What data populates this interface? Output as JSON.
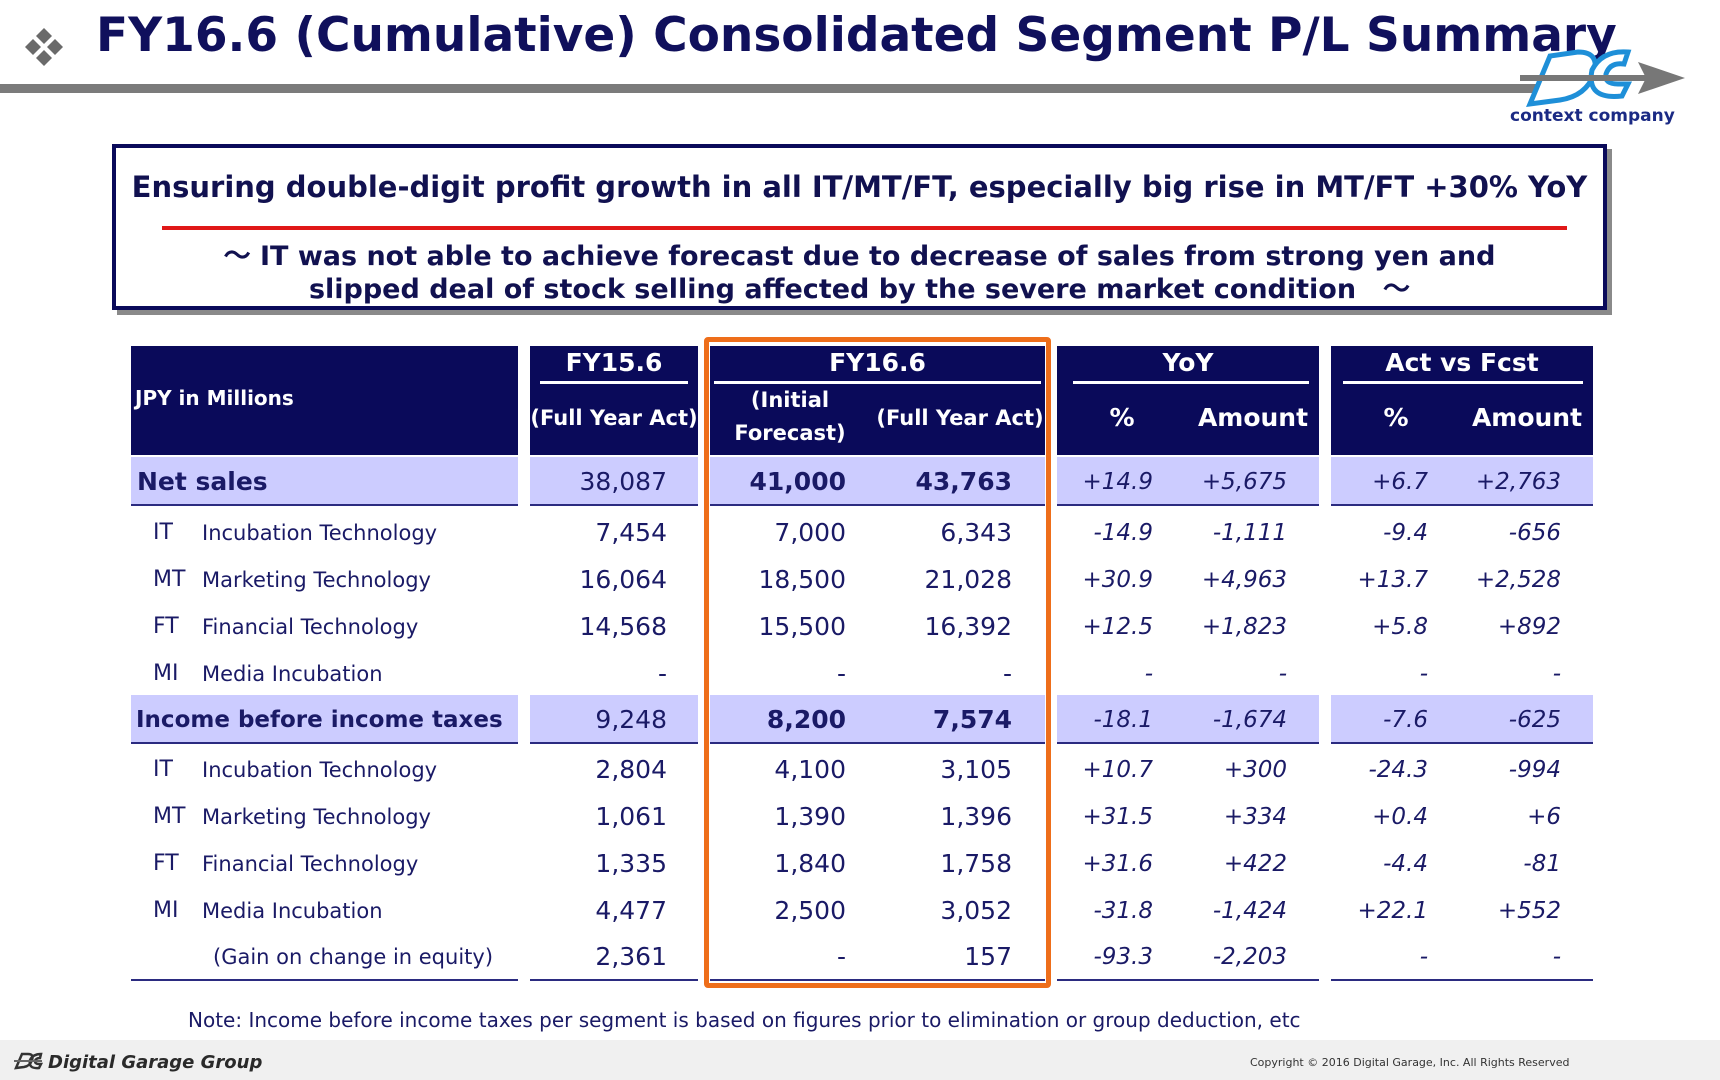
{
  "title": "FY16.6 (Cumulative) Consolidated Segment P/L Summary",
  "brand": {
    "tagline": "context company",
    "footer_name": "Digital Garage Group",
    "copyright": "Copyright  © 2016 Digital Garage, Inc. All Rights Reserved"
  },
  "message": {
    "headline": "Ensuring double-digit profit growth in all IT/MT/FT, especially big rise in MT/FT +30% YoY",
    "sub_line1": "～ IT was not able to achieve forecast due to decrease of sales from strong yen and",
    "sub_line2": "slipped deal of stock selling affected by the severe market condition　～"
  },
  "table": {
    "unit_label": "JPY in Millions",
    "groups": {
      "fy15": "FY15.6",
      "fy16": "FY16.6",
      "yoy": "YoY",
      "fcst": "Act vs Fcst"
    },
    "subheaders": {
      "fy15_act": "(Full Year Act)",
      "fy16_fcst_1": "(Initial",
      "fy16_fcst_2": "Forecast)",
      "fy16_act": "(Full Year Act)",
      "yoy_pct": "%",
      "yoy_amt": "Amount",
      "fcst_pct": "%",
      "fcst_amt": "Amount"
    },
    "rows": [
      {
        "code": "",
        "name": "Net sales",
        "fy15": "38,087",
        "fcst": "41,000",
        "act": "43,763",
        "yoy_pct": "+14.9",
        "yoy_amt": "+5,675",
        "vs_pct": "+6.7",
        "vs_amt": "+2,763"
      },
      {
        "code": "IT",
        "name": "Incubation Technology",
        "fy15": "7,454",
        "fcst": "7,000",
        "act": "6,343",
        "yoy_pct": "-14.9",
        "yoy_amt": "-1,111",
        "vs_pct": "-9.4",
        "vs_amt": "-656"
      },
      {
        "code": "MT",
        "name": "Marketing Technology",
        "fy15": "16,064",
        "fcst": "18,500",
        "act": "21,028",
        "yoy_pct": "+30.9",
        "yoy_amt": "+4,963",
        "vs_pct": "+13.7",
        "vs_amt": "+2,528"
      },
      {
        "code": "FT",
        "name": "Financial Technology",
        "fy15": "14,568",
        "fcst": "15,500",
        "act": "16,392",
        "yoy_pct": "+12.5",
        "yoy_amt": "+1,823",
        "vs_pct": "+5.8",
        "vs_amt": "+892"
      },
      {
        "code": "MI",
        "name": "Media Incubation",
        "fy15": "-",
        "fcst": "-",
        "act": "-",
        "yoy_pct": "-",
        "yoy_amt": "-",
        "vs_pct": "-",
        "vs_amt": "-"
      },
      {
        "code": "",
        "name": "Income before income taxes",
        "fy15": "9,248",
        "fcst": "8,200",
        "act": "7,574",
        "yoy_pct": "-18.1",
        "yoy_amt": "-1,674",
        "vs_pct": "-7.6",
        "vs_amt": "-625"
      },
      {
        "code": "IT",
        "name": "Incubation Technology",
        "fy15": "2,804",
        "fcst": "4,100",
        "act": "3,105",
        "yoy_pct": "+10.7",
        "yoy_amt": "+300",
        "vs_pct": "-24.3",
        "vs_amt": "-994"
      },
      {
        "code": "MT",
        "name": "Marketing Technology",
        "fy15": "1,061",
        "fcst": "1,390",
        "act": "1,396",
        "yoy_pct": "+31.5",
        "yoy_amt": "+334",
        "vs_pct": "+0.4",
        "vs_amt": "+6"
      },
      {
        "code": "FT",
        "name": "Financial Technology",
        "fy15": "1,335",
        "fcst": "1,840",
        "act": "1,758",
        "yoy_pct": "+31.6",
        "yoy_amt": "+422",
        "vs_pct": "-4.4",
        "vs_amt": "-81"
      },
      {
        "code": "MI",
        "name": "Media Incubation",
        "fy15": "4,477",
        "fcst": "2,500",
        "act": "3,052",
        "yoy_pct": "-31.8",
        "yoy_amt": "-1,424",
        "vs_pct": "+22.1",
        "vs_amt": "+552"
      },
      {
        "code": "",
        "name": "(Gain on change in equity)",
        "fy15": "2,361",
        "fcst": "-",
        "act": "157",
        "yoy_pct": "-93.3",
        "yoy_amt": "-2,203",
        "vs_pct": "-",
        "vs_amt": "-"
      }
    ]
  },
  "note": "Note: Income before income taxes per segment is based on figures prior to elimination or group deduction, etc",
  "colors": {
    "navy": "#0a0a5a",
    "band": "#ccccff",
    "highlight": "#ee6e1a",
    "red_rule": "#e01818"
  }
}
